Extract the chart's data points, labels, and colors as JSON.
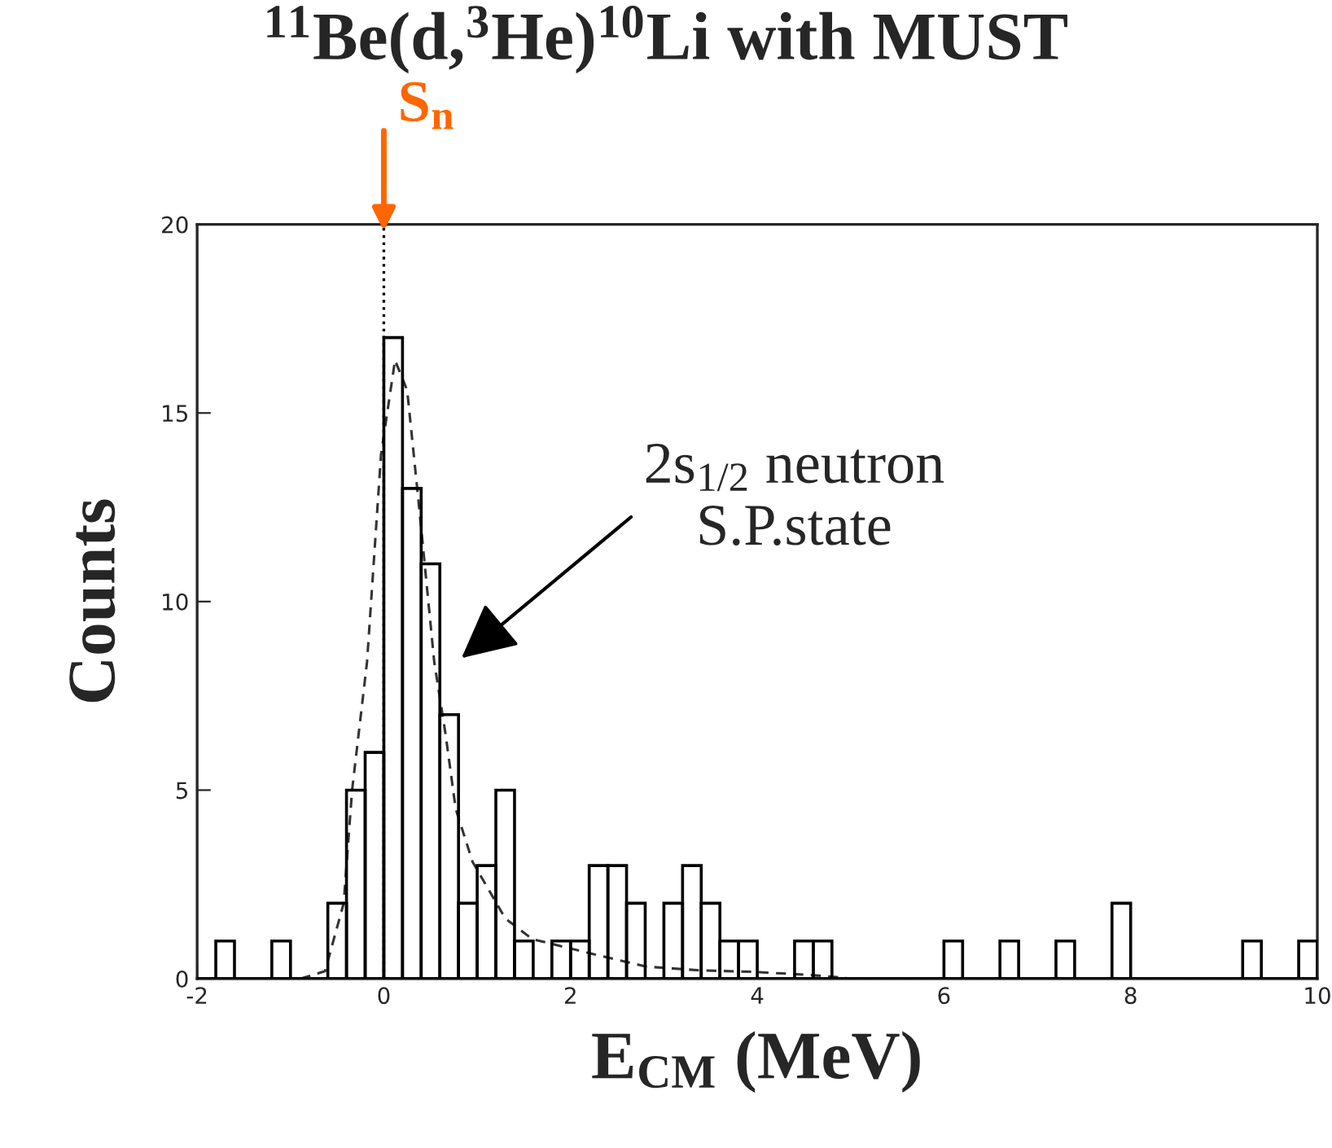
{
  "chart_data": {
    "type": "histogram",
    "title": "$^{11}$Be(d,$^{3}$He)$^{10}$Li with MUST",
    "xlabel": "E$_{CM}$ (MeV)",
    "ylabel": "Counts",
    "series": [
      {
        "color": "#000000",
        "bins": [
          -2,
          -1.8,
          -1.6,
          -1.4,
          -1.2,
          -1,
          -0.8,
          -0.6,
          -0.4,
          -0.2,
          0,
          0.2,
          0.4,
          0.6,
          0.8,
          1,
          1.2,
          1.4,
          1.6,
          1.8,
          2,
          2.2,
          2.4,
          2.6,
          2.8,
          3,
          3.2,
          3.4,
          3.6,
          3.8,
          4,
          4.2,
          4.4,
          4.6,
          4.8,
          5,
          5.2,
          5.4,
          5.6,
          5.8,
          6,
          6.2,
          6.4,
          6.6,
          6.8,
          7,
          7.2,
          7.4,
          7.6,
          7.8,
          8,
          8.2,
          8.4,
          8.6,
          8.8,
          9,
          9.2,
          9.4,
          9.6,
          9.8,
          10
        ],
        "values": [
          0,
          1,
          0,
          0,
          1,
          0,
          0,
          2,
          5,
          6,
          17,
          13,
          11,
          7,
          2,
          3,
          5,
          1,
          0,
          1,
          1,
          3,
          3,
          2,
          0,
          2,
          3,
          2,
          1,
          1,
          0,
          0,
          1,
          1,
          0,
          0,
          0,
          0,
          0,
          0,
          1,
          0,
          0,
          1,
          0,
          0,
          1,
          0,
          0,
          2,
          0,
          0,
          0,
          0,
          0,
          0,
          1,
          0,
          0,
          1
        ]
      },
      {
        "type": "line",
        "color": "#333333",
        "line_style": "dashed",
        "x": [
          -0.89,
          -0.63,
          -0.43,
          -0.34,
          -0.18,
          -0.03,
          0.12,
          0.25,
          0.37,
          0.54,
          0.66,
          0.77,
          0.95,
          1.3,
          1.59,
          2.23,
          2.81,
          3.39,
          3.97,
          4.55,
          4.95
        ],
        "values": [
          0,
          0.2,
          2,
          5,
          8.4,
          13.9,
          16.4,
          15.6,
          12.7,
          8.4,
          6.5,
          4.5,
          3.1,
          1.6,
          1.05,
          0.66,
          0.32,
          0.22,
          0.18,
          0.1,
          0.02
        ]
      }
    ],
    "xlim": [
      -2,
      10
    ],
    "xticks": [
      -2,
      0,
      2,
      4,
      6,
      8,
      10
    ],
    "ylim": [
      0,
      20
    ],
    "yticks": [
      0,
      5,
      10,
      15,
      20
    ],
    "grid": false,
    "ref_lines": [
      {
        "axis": "x",
        "value": 0,
        "label": "S$_{n}$",
        "line_style": "dotted"
      }
    ],
    "annotations": [
      "2s$_{1/2}$ neutron\nS.P.state"
    ]
  }
}
